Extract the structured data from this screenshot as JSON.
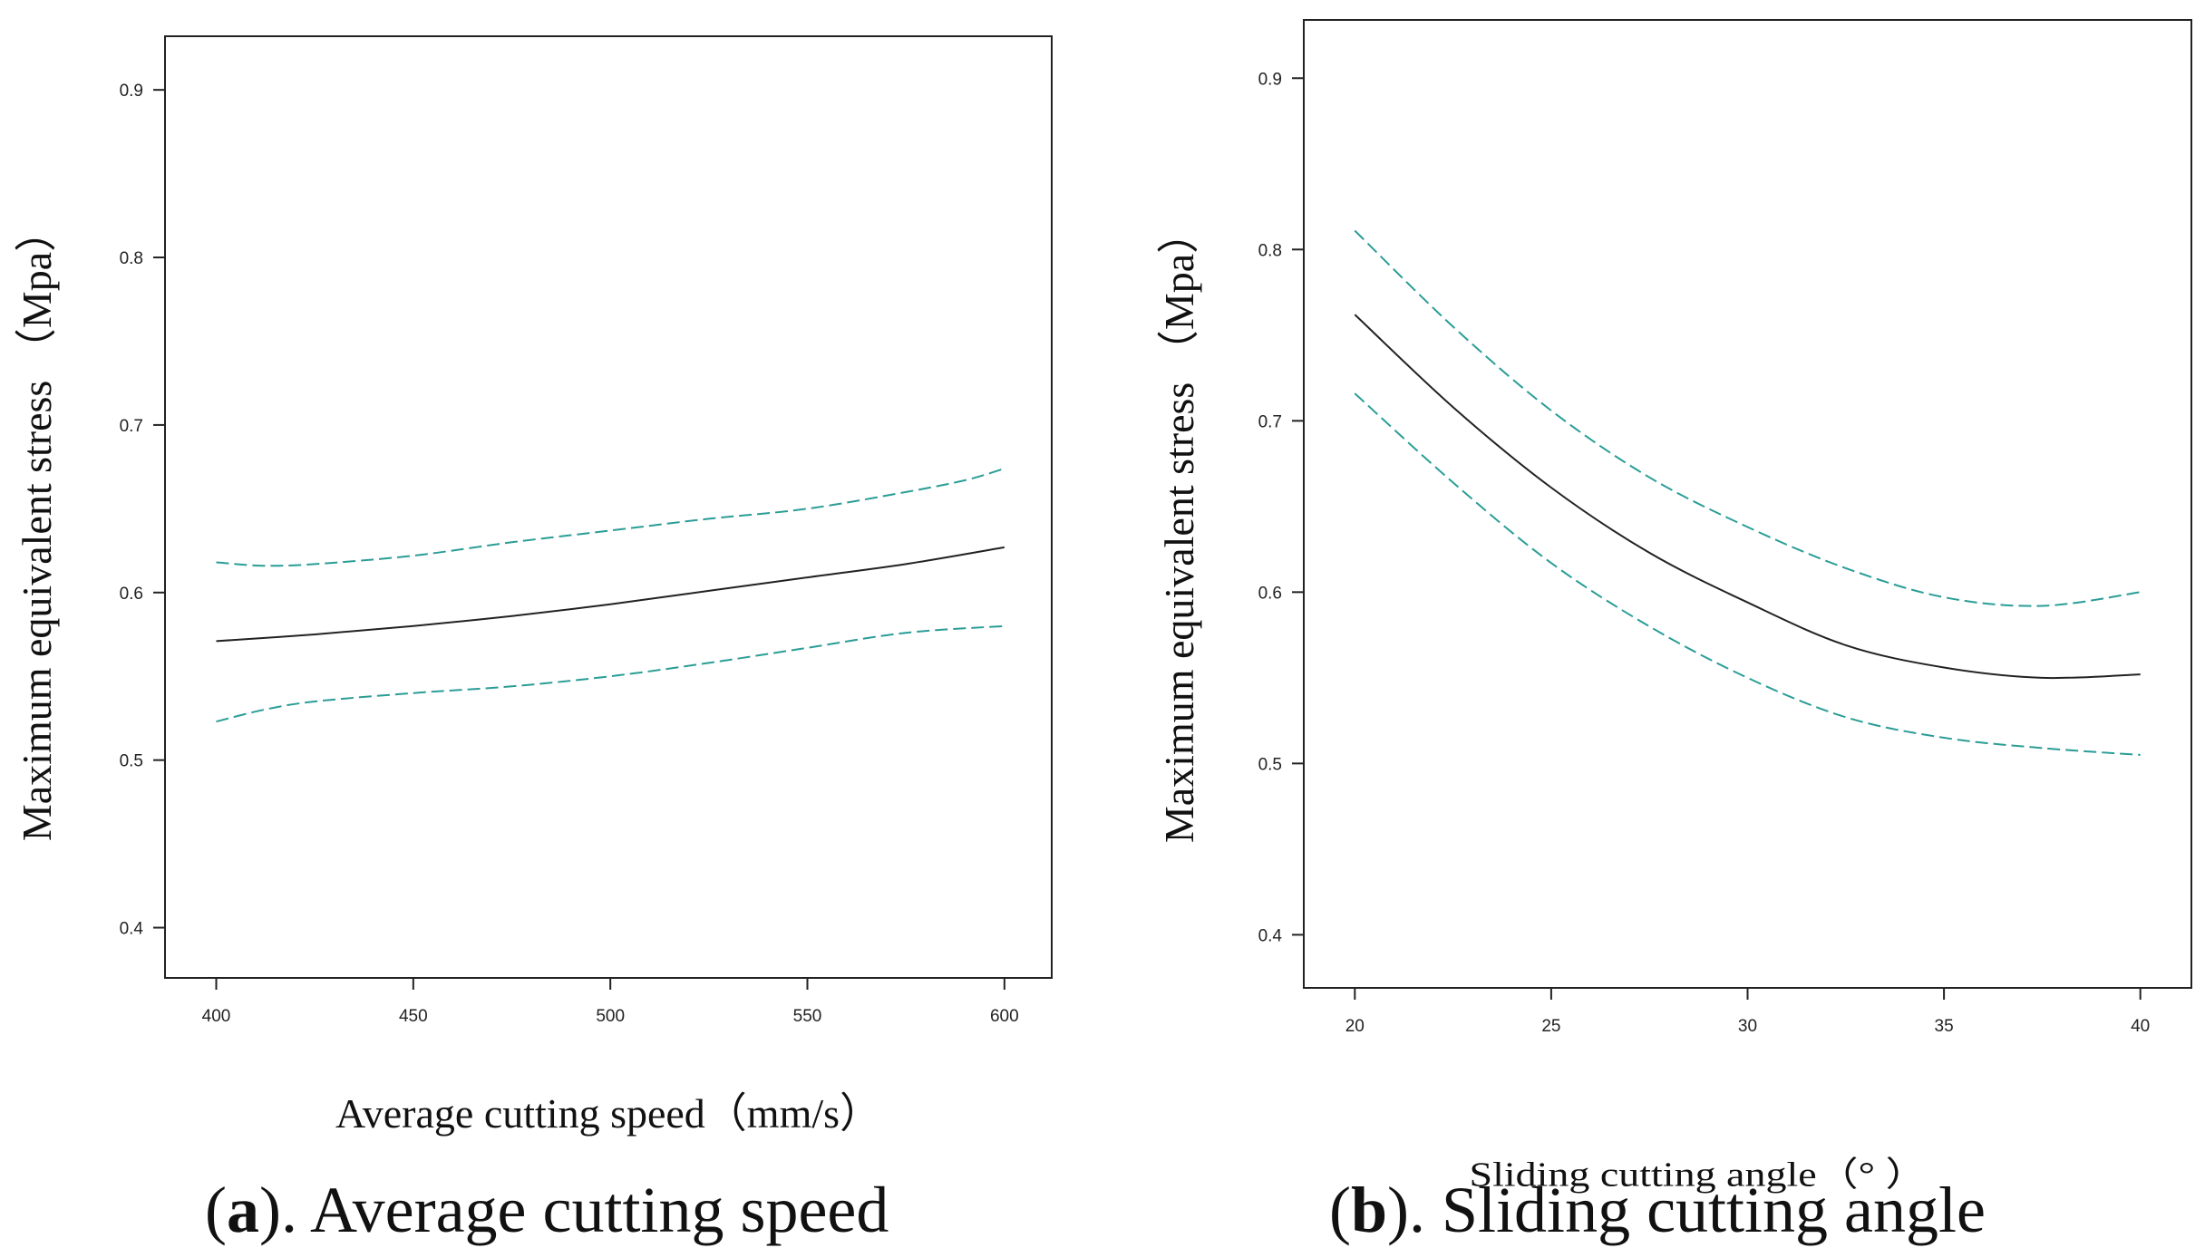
{
  "chart_data": [
    {
      "type": "line",
      "panel": "a",
      "caption_letter": "a",
      "caption_text": "). Average cutting speed",
      "xlabel": "Average cutting speed（mm/s）",
      "ylabel": "Maximum equivalent stress （Mpa）",
      "xlim": [
        387,
        612
      ],
      "ylim": [
        0.37,
        0.932
      ],
      "xticks": [
        400,
        450,
        500,
        550,
        600
      ],
      "xtick_labels": [
        "400",
        "450",
        "500",
        "550",
        "600"
      ],
      "yticks": [
        0.4,
        0.5,
        0.6,
        0.7,
        0.8,
        0.9
      ],
      "ytick_labels": [
        "0.4",
        "0.5",
        "0.6",
        "0.7",
        "0.8",
        "0.9"
      ],
      "series": [
        {
          "name": "fit",
          "style": "solid",
          "color": "#222222",
          "x": [
            400,
            425,
            450,
            475,
            500,
            525,
            550,
            575,
            600
          ],
          "y": [
            0.571,
            0.575,
            0.58,
            0.586,
            0.593,
            0.601,
            0.609,
            0.617,
            0.627
          ]
        },
        {
          "name": "upper confidence band",
          "style": "dashed",
          "color": "#2a9d96",
          "x": [
            400,
            412,
            425,
            450,
            475,
            500,
            525,
            550,
            575,
            590,
            600
          ],
          "y": [
            0.618,
            0.616,
            0.617,
            0.622,
            0.63,
            0.637,
            0.644,
            0.65,
            0.66,
            0.667,
            0.674
          ]
        },
        {
          "name": "lower confidence band",
          "style": "dashed",
          "color": "#2a9d96",
          "x": [
            400,
            412,
            425,
            450,
            475,
            500,
            525,
            550,
            575,
            600
          ],
          "y": [
            0.523,
            0.53,
            0.535,
            0.54,
            0.544,
            0.55,
            0.558,
            0.567,
            0.576,
            0.58
          ]
        }
      ]
    },
    {
      "type": "line",
      "panel": "b",
      "caption_letter": "b",
      "caption_text": "). Sliding cutting angle",
      "xlabel": "Sliding cutting angle（° ）",
      "ylabel": "Maximum equivalent stress （Mpa）",
      "xlim": [
        18.7,
        41.3
      ],
      "ylim": [
        0.369,
        0.934
      ],
      "xticks": [
        20,
        25,
        30,
        35,
        40
      ],
      "xtick_labels": [
        "20",
        "25",
        "30",
        "35",
        "40"
      ],
      "yticks": [
        0.4,
        0.5,
        0.6,
        0.7,
        0.8,
        0.9
      ],
      "ytick_labels": [
        "0.4",
        "0.5",
        "0.6",
        "0.7",
        "0.8",
        "0.9"
      ],
      "series": [
        {
          "name": "fit",
          "style": "solid",
          "color": "#222222",
          "x": [
            20,
            22.5,
            25,
            27.5,
            30,
            32.5,
            35,
            37.5,
            40
          ],
          "y": [
            0.762,
            0.708,
            0.661,
            0.623,
            0.594,
            0.569,
            0.556,
            0.55,
            0.552
          ]
        },
        {
          "name": "upper confidence band",
          "style": "dashed",
          "color": "#2a9d96",
          "x": [
            20,
            22.5,
            25,
            27.5,
            30,
            32.5,
            35,
            37.5,
            40
          ],
          "y": [
            0.811,
            0.755,
            0.706,
            0.667,
            0.638,
            0.614,
            0.597,
            0.592,
            0.6
          ]
        },
        {
          "name": "lower confidence band",
          "style": "dashed",
          "color": "#2a9d96",
          "x": [
            20,
            22.5,
            25,
            27.5,
            30,
            32.5,
            35,
            37.5,
            40
          ],
          "y": [
            0.716,
            0.664,
            0.617,
            0.58,
            0.55,
            0.527,
            0.515,
            0.509,
            0.505
          ]
        }
      ]
    }
  ]
}
